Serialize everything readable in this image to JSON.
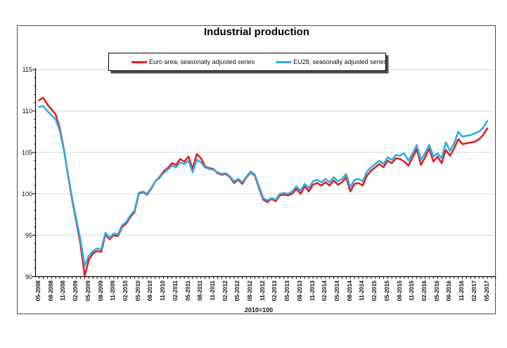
{
  "chart_data": {
    "type": "line",
    "title": "Industrial production",
    "legend_position": "top",
    "grid": "horizontal-only",
    "x_axis": {
      "unit_note": "2010=100",
      "tick_labels": [
        "05-2008",
        "08-2008",
        "11-2008",
        "02-2009",
        "05-2009",
        "08-2009",
        "11-2009",
        "02-2010",
        "05-2010",
        "08-2010",
        "11-2010",
        "02-2011",
        "05-2011",
        "08-2011",
        "11-2011",
        "02-2012",
        "05-2012",
        "08-2012",
        "11-2012",
        "02-2013",
        "05-2013",
        "08-2013",
        "11-2013",
        "02-2014",
        "05-2014",
        "08-2014",
        "11-2014",
        "02-2015",
        "05-2015",
        "08-2015",
        "11-2015",
        "02-2016",
        "05-2016",
        "08-2016",
        "11-2016",
        "02-2017",
        "05-2017"
      ]
    },
    "y_axis": {
      "tick_labels": [
        "90",
        "95",
        "100",
        "105",
        "110",
        "115"
      ],
      "ticks": [
        90,
        95,
        100,
        105,
        110,
        115
      ],
      "range": [
        90,
        115
      ]
    },
    "x": [
      "05-2008",
      "06-2008",
      "07-2008",
      "08-2008",
      "09-2008",
      "10-2008",
      "11-2008",
      "12-2008",
      "01-2009",
      "02-2009",
      "03-2009",
      "04-2009",
      "05-2009",
      "06-2009",
      "07-2009",
      "08-2009",
      "09-2009",
      "10-2009",
      "11-2009",
      "12-2009",
      "01-2010",
      "02-2010",
      "03-2010",
      "04-2010",
      "05-2010",
      "06-2010",
      "07-2010",
      "08-2010",
      "09-2010",
      "10-2010",
      "11-2010",
      "12-2010",
      "01-2011",
      "02-2011",
      "03-2011",
      "04-2011",
      "05-2011",
      "06-2011",
      "07-2011",
      "08-2011",
      "09-2011",
      "10-2011",
      "11-2011",
      "12-2011",
      "01-2012",
      "02-2012",
      "03-2012",
      "04-2012",
      "05-2012",
      "06-2012",
      "07-2012",
      "08-2012",
      "09-2012",
      "10-2012",
      "11-2012",
      "12-2012",
      "01-2013",
      "02-2013",
      "03-2013",
      "04-2013",
      "05-2013",
      "06-2013",
      "07-2013",
      "08-2013",
      "09-2013",
      "10-2013",
      "11-2013",
      "12-2013",
      "01-2014",
      "02-2014",
      "03-2014",
      "04-2014",
      "05-2014",
      "06-2014",
      "07-2014",
      "08-2014",
      "09-2014",
      "10-2014",
      "11-2014",
      "12-2014",
      "01-2015",
      "02-2015",
      "03-2015",
      "04-2015",
      "05-2015",
      "06-2015",
      "07-2015",
      "08-2015",
      "09-2015",
      "10-2015",
      "11-2015",
      "12-2015",
      "01-2016",
      "02-2016",
      "03-2016",
      "04-2016",
      "05-2016",
      "06-2016",
      "07-2016",
      "08-2016",
      "09-2016",
      "10-2016",
      "11-2016",
      "12-2016",
      "01-2017",
      "02-2017",
      "03-2017",
      "04-2017",
      "05-2017"
    ],
    "series": [
      {
        "name": "Euro area, seasonally adjusted series",
        "color": "#e02026",
        "values": [
          111.3,
          111.6,
          110.8,
          110.2,
          109.6,
          107.9,
          105.4,
          102.2,
          99.2,
          96.6,
          93.9,
          90.1,
          92.0,
          92.8,
          93.1,
          93.0,
          95.1,
          94.5,
          95.0,
          94.9,
          96.0,
          96.4,
          97.2,
          97.8,
          100.0,
          100.2,
          99.9,
          100.6,
          101.5,
          102.0,
          102.7,
          103.1,
          103.7,
          103.5,
          104.2,
          103.9,
          104.5,
          103.0,
          104.8,
          104.3,
          103.3,
          103.1,
          103.0,
          102.5,
          102.3,
          102.4,
          102.0,
          101.3,
          101.7,
          101.2,
          102.0,
          102.6,
          102.2,
          100.7,
          99.3,
          99.0,
          99.4,
          99.1,
          99.8,
          99.9,
          99.8,
          100.0,
          100.6,
          100.0,
          100.9,
          100.3,
          101.1,
          101.3,
          101.0,
          101.4,
          101.0,
          101.6,
          101.1,
          101.4,
          102.0,
          100.3,
          101.2,
          101.3,
          101.0,
          102.2,
          102.8,
          103.2,
          103.6,
          103.2,
          104.0,
          103.7,
          104.3,
          104.2,
          103.9,
          103.4,
          104.4,
          105.4,
          103.5,
          104.4,
          105.5,
          103.9,
          104.5,
          103.7,
          105.3,
          104.6,
          105.5,
          106.6,
          106.0,
          106.1,
          106.2,
          106.3,
          106.6,
          107.1,
          107.9
        ]
      },
      {
        "name": "EU28, seasonally adjusted series",
        "color": "#30aedf",
        "values": [
          110.5,
          110.6,
          110.0,
          109.5,
          109.0,
          107.6,
          105.2,
          102.3,
          99.4,
          96.9,
          94.4,
          91.3,
          92.5,
          93.1,
          93.4,
          93.3,
          95.3,
          94.7,
          95.2,
          95.1,
          96.2,
          96.6,
          97.4,
          98.0,
          100.1,
          100.3,
          100.0,
          100.7,
          101.5,
          101.9,
          102.5,
          102.9,
          103.4,
          103.2,
          103.8,
          103.6,
          104.0,
          102.6,
          104.1,
          103.8,
          103.2,
          103.0,
          102.9,
          102.6,
          102.4,
          102.5,
          102.1,
          101.5,
          101.8,
          101.4,
          102.1,
          102.7,
          102.3,
          100.9,
          99.5,
          99.2,
          99.5,
          99.3,
          100.0,
          100.1,
          100.0,
          100.3,
          100.9,
          100.4,
          101.2,
          100.7,
          101.5,
          101.7,
          101.4,
          101.8,
          101.4,
          102.0,
          101.5,
          101.8,
          102.4,
          100.8,
          101.7,
          101.8,
          101.5,
          102.7,
          103.2,
          103.6,
          104.0,
          103.6,
          104.4,
          104.1,
          104.7,
          104.6,
          104.9,
          104.0,
          104.9,
          105.9,
          104.1,
          104.9,
          105.9,
          104.5,
          104.9,
          104.3,
          106.2,
          105.2,
          106.1,
          107.5,
          106.9,
          107.0,
          107.1,
          107.3,
          107.5,
          108.0,
          108.8
        ]
      }
    ],
    "colors": {
      "gridline": "#d9d9d9",
      "axis": "#000000",
      "frame": "#4a4a4a"
    }
  }
}
